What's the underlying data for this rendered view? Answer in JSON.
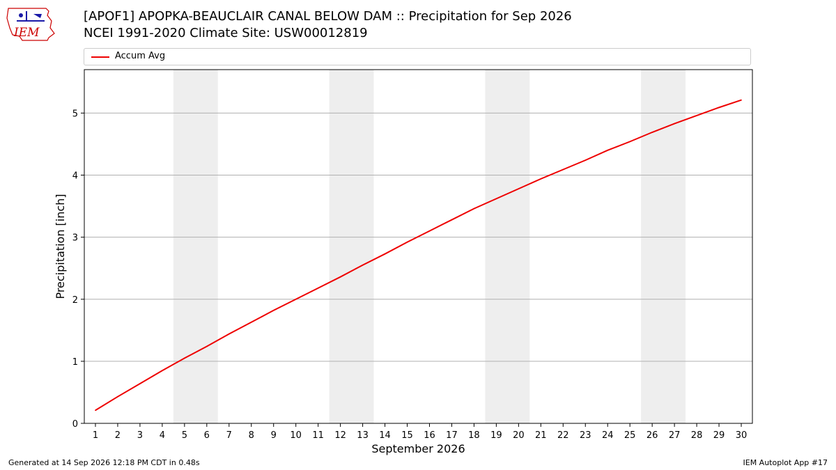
{
  "header": {
    "logo_text": "IEM",
    "title_line1": "[APOF1] APOPKA-BEAUCLAIR CANAL BELOW DAM :: Precipitation for Sep 2026",
    "title_line2": "NCEI 1991-2020 Climate Site: USW00012819"
  },
  "legend": {
    "position": "top",
    "items": [
      {
        "label": "Accum Avg",
        "color": "#ee0000"
      }
    ]
  },
  "footer": {
    "generated": "Generated at 14 Sep 2026 12:18 PM CDT in 0.48s",
    "app": "IEM Autoplot App #17"
  },
  "chart_data": {
    "type": "line",
    "title": "",
    "xlabel": "September 2026",
    "ylabel": "Precipitation [inch]",
    "xlim": [
      0.5,
      30.5
    ],
    "ylim": [
      0,
      5.7
    ],
    "yticks": [
      0,
      1,
      2,
      3,
      4,
      5
    ],
    "grid": "horizontal",
    "weekend_shading": [
      [
        4.5,
        6.5
      ],
      [
        11.5,
        13.5
      ],
      [
        18.5,
        20.5
      ],
      [
        25.5,
        27.5
      ]
    ],
    "shade_color": "#eeeeee",
    "x": [
      1,
      2,
      3,
      4,
      5,
      6,
      7,
      8,
      9,
      10,
      11,
      12,
      13,
      14,
      15,
      16,
      17,
      18,
      19,
      20,
      21,
      22,
      23,
      24,
      25,
      26,
      27,
      28,
      29,
      30
    ],
    "series": [
      {
        "name": "Accum Avg",
        "color": "#ee0000",
        "values": [
          0.21,
          0.43,
          0.64,
          0.85,
          1.05,
          1.24,
          1.44,
          1.63,
          1.82,
          2.0,
          2.18,
          2.36,
          2.55,
          2.73,
          2.92,
          3.1,
          3.28,
          3.46,
          3.62,
          3.78,
          3.94,
          4.09,
          4.24,
          4.4,
          4.54,
          4.69,
          4.83,
          4.96,
          5.09,
          5.21
        ]
      }
    ]
  }
}
